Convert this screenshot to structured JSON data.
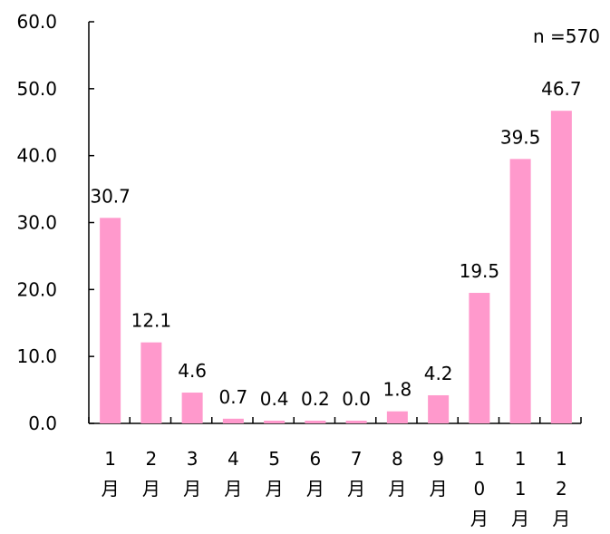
{
  "chart_data": {
    "type": "bar",
    "categories": [
      [
        "1",
        "月"
      ],
      [
        "2",
        "月"
      ],
      [
        "3",
        "月"
      ],
      [
        "4",
        "月"
      ],
      [
        "5",
        "月"
      ],
      [
        "6",
        "月"
      ],
      [
        "7",
        "月"
      ],
      [
        "8",
        "月"
      ],
      [
        "9",
        "月"
      ],
      [
        "1",
        "0",
        "月"
      ],
      [
        "1",
        "1",
        "月"
      ],
      [
        "1",
        "2",
        "月"
      ]
    ],
    "values": [
      30.7,
      12.1,
      4.6,
      0.7,
      0.4,
      0.2,
      0.0,
      1.8,
      4.2,
      19.5,
      39.5,
      46.7
    ],
    "data_labels": [
      "30.7",
      "12.1",
      "4.6",
      "0.7",
      "0.4",
      "0.2",
      "0.0",
      "1.8",
      "4.2",
      "19.5",
      "39.5",
      "46.7"
    ],
    "yticks": [
      "0.0",
      "10.0",
      "20.0",
      "30.0",
      "40.0",
      "50.0",
      "60.0"
    ],
    "ylim": [
      0,
      60
    ],
    "annotation": "n =570",
    "bar_color": "#ff99cc",
    "grid": false,
    "legend": "none"
  }
}
